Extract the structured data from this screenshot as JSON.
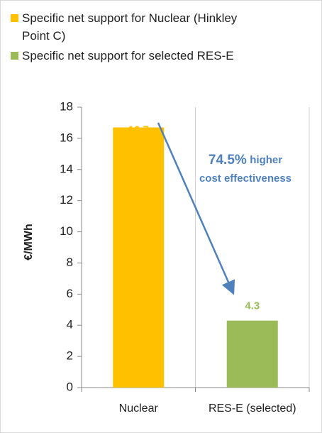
{
  "chart_data": {
    "type": "bar",
    "categories": [
      "Nuclear",
      "RES-E (selected)"
    ],
    "values": [
      16.7,
      4.3
    ],
    "colors": [
      "#ffc000",
      "#9bbb59"
    ],
    "legend": [
      "Specific net support for Nuclear (Hinkley Point C)",
      "Specific net support for selected RES-E"
    ],
    "y_label": "€/MWh",
    "annotation": [
      "74.5%",
      "higher",
      "cost effectiveness"
    ],
    "ylim": [
      0,
      18
    ],
    "yticks": [
      0,
      2,
      4,
      6,
      8,
      10,
      12,
      14,
      16,
      18
    ],
    "grid": false
  }
}
